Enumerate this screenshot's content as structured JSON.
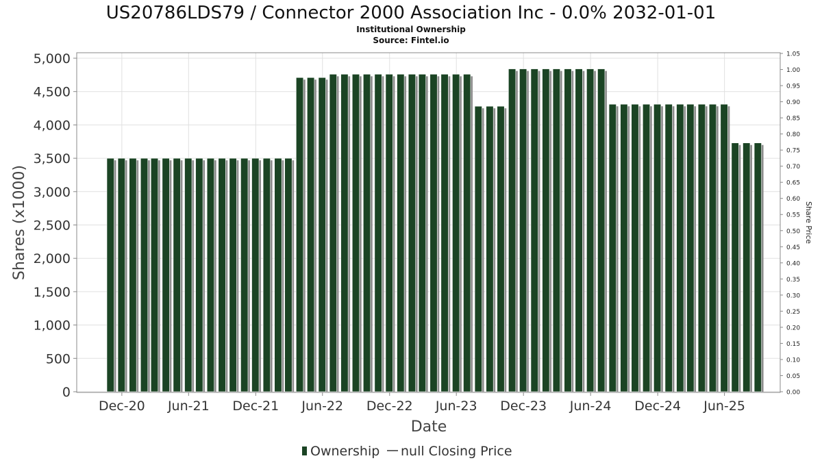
{
  "chart_data": {
    "type": "bar",
    "title": "US20786LDS79 / Connector 2000 Association Inc - 0.0% 2032-01-01",
    "subtitle_lines": [
      "Institutional Ownership",
      "Source: Fintel.io"
    ],
    "xlabel": "Date",
    "ylabel": "Shares (x1000)",
    "y2label": "Share Price",
    "ylim": [
      0,
      5000
    ],
    "y_ticks": [
      "0",
      "500",
      "1,000",
      "1,500",
      "2,000",
      "2,500",
      "3,000",
      "3,500",
      "4,000",
      "4,500",
      "5,000"
    ],
    "y2lim": [
      0,
      1.05
    ],
    "y2_ticks": [
      "0.00",
      "0.05",
      "0.10",
      "0.15",
      "0.20",
      "0.25",
      "0.30",
      "0.35",
      "0.40",
      "0.45",
      "0.50",
      "0.55",
      "0.60",
      "0.65",
      "0.70",
      "0.75",
      "0.80",
      "0.85",
      "0.90",
      "0.95",
      "1.00",
      "1.05"
    ],
    "x_tick_labels": [
      "Dec-20",
      "Jun-21",
      "Dec-21",
      "Jun-22",
      "Dec-22",
      "Jun-23",
      "Dec-23",
      "Jun-24",
      "Dec-24",
      "Jun-25"
    ],
    "x_start": "2020-07-31",
    "x_end": "2025-10-31",
    "bar_dates": [
      "2020-10-31",
      "2020-11-30",
      "2020-12-31",
      "2021-01-31",
      "2021-02-28",
      "2021-03-31",
      "2021-04-30",
      "2021-05-31",
      "2021-06-30",
      "2021-07-31",
      "2021-08-31",
      "2021-09-30",
      "2021-10-31",
      "2021-11-30",
      "2021-12-31",
      "2022-01-31",
      "2022-02-28",
      "2022-03-31",
      "2022-04-30",
      "2022-05-31",
      "2022-06-30",
      "2022-07-31",
      "2022-08-31",
      "2022-09-30",
      "2022-10-31",
      "2022-11-30",
      "2022-12-31",
      "2023-01-31",
      "2023-02-28",
      "2023-03-31",
      "2023-04-30",
      "2023-05-31",
      "2023-06-30",
      "2023-07-31",
      "2023-08-31",
      "2023-09-30",
      "2023-10-31",
      "2023-11-30",
      "2023-12-31",
      "2024-01-31",
      "2024-02-29",
      "2024-03-31",
      "2024-04-30",
      "2024-05-31",
      "2024-06-30",
      "2024-07-31",
      "2024-08-31",
      "2024-09-30",
      "2024-10-31",
      "2024-11-30",
      "2024-12-31",
      "2025-01-31",
      "2025-02-28",
      "2025-03-31",
      "2025-04-30",
      "2025-05-31",
      "2025-06-30",
      "2025-07-31",
      "2025-08-31"
    ],
    "series": [
      {
        "name": "Ownership",
        "values": [
          3500,
          3500,
          3500,
          3500,
          3500,
          3500,
          3500,
          3500,
          3500,
          3500,
          3500,
          3500,
          3500,
          3500,
          3500,
          3500,
          3500,
          4710,
          4710,
          4710,
          4760,
          4760,
          4760,
          4760,
          4760,
          4760,
          4760,
          4760,
          4760,
          4760,
          4760,
          4760,
          4760,
          4280,
          4280,
          4280,
          4840,
          4840,
          4840,
          4840,
          4840,
          4840,
          4840,
          4840,
          4840,
          4310,
          4310,
          4310,
          4310,
          4310,
          4310,
          4310,
          4310,
          4310,
          4310,
          4310,
          3730,
          3730,
          3730
        ]
      }
    ],
    "legend": [
      "Ownership",
      "null Closing Price"
    ],
    "legend_position": "bottom",
    "grid": true,
    "colors": {
      "bar": "#1b4424",
      "bar_shadow": "#8c8c8c",
      "grid": "#e0e0e0",
      "axis": "#555555"
    }
  }
}
